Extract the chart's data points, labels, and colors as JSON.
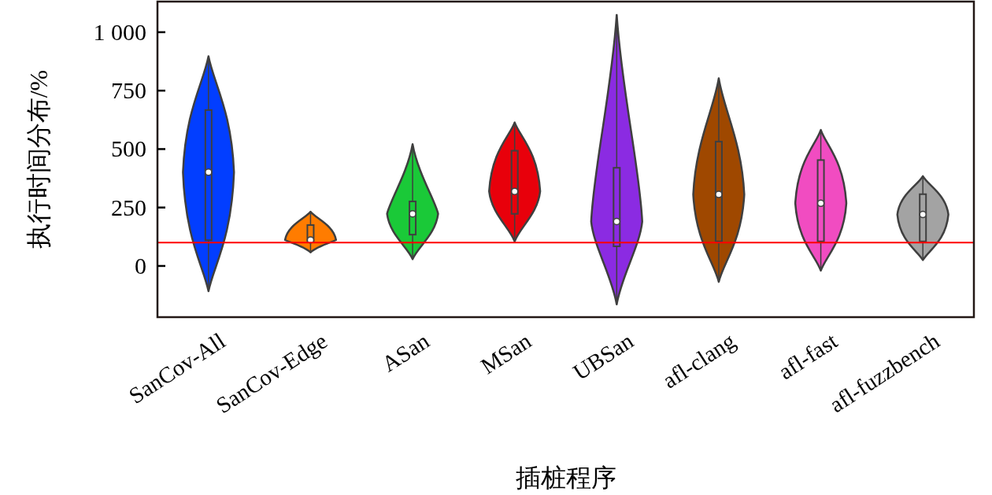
{
  "chart_data": {
    "type": "box",
    "xlabel": "插桩程序",
    "ylabel": "执行时间分布/%",
    "categories": [
      "SanCov-All",
      "SanCov-Edge",
      "ASan",
      "MSan",
      "UBSan",
      "afl-clang",
      "afl-fast",
      "afl-fuzzbench"
    ],
    "colors": [
      "#023eff",
      "#ff7c00",
      "#1ac938",
      "#e8000b",
      "#8b2be2",
      "#9f4800",
      "#f14cc1",
      "#a3a3a3"
    ],
    "boxes": [
      {
        "low": -108,
        "q1": 110,
        "median": 401,
        "q3": 667,
        "high": 897
      },
      {
        "low": 58,
        "q1": 105,
        "median": 111,
        "q3": 175,
        "high": 232
      },
      {
        "low": 29,
        "q1": 134,
        "median": 223,
        "q3": 276,
        "high": 521
      },
      {
        "low": 105,
        "q1": 223,
        "median": 319,
        "q3": 493,
        "high": 614
      },
      {
        "low": -164,
        "q1": 84,
        "median": 190,
        "q3": 420,
        "high": 1074
      },
      {
        "low": -68,
        "q1": 105,
        "median": 306,
        "q3": 532,
        "high": 803
      },
      {
        "low": -20,
        "q1": 105,
        "median": 268,
        "q3": 453,
        "high": 582
      },
      {
        "low": 25,
        "q1": 105,
        "median": 220,
        "q3": 307,
        "high": 384
      }
    ],
    "ylim": [
      -219,
      1131
    ],
    "yticks": [
      0,
      250,
      500,
      750,
      {
        "value": 1000,
        "label": "1 000"
      }
    ],
    "grid": false,
    "ref_lines": [
      {
        "axis": "y",
        "value": 100,
        "color": "#ff0000"
      }
    ]
  }
}
